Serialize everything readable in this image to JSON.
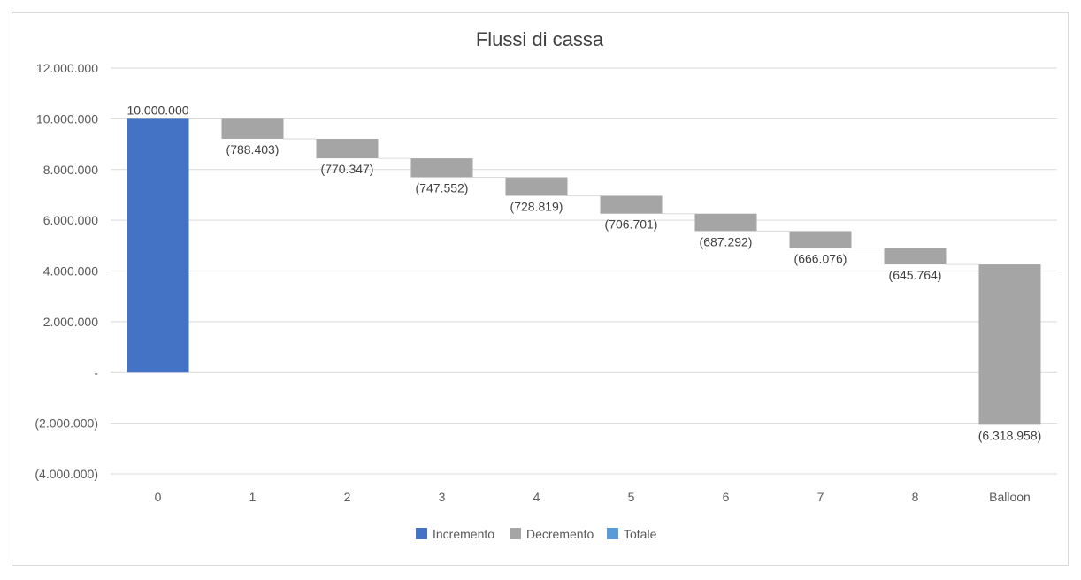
{
  "chart_data": {
    "type": "waterfall",
    "title": "Flussi di cassa",
    "categories": [
      "0",
      "1",
      "2",
      "3",
      "4",
      "5",
      "6",
      "7",
      "8",
      "Balloon"
    ],
    "values": [
      10000000,
      -788403,
      -770347,
      -747552,
      -728819,
      -706701,
      -687292,
      -666076,
      -645764,
      -6318958
    ],
    "data_labels": [
      "10.000.000",
      "(788.403)",
      "(770.347)",
      "(747.552)",
      "(728.819)",
      "(706.701)",
      "(687.292)",
      "(666.076)",
      "(645.764)",
      "(6.318.958)"
    ],
    "ylim": [
      -4000000,
      12000000
    ],
    "y_ticks": [
      12000000,
      10000000,
      8000000,
      6000000,
      4000000,
      2000000,
      0,
      -2000000,
      -4000000
    ],
    "y_tick_labels": [
      "12.000.000",
      "10.000.000",
      "8.000.000",
      "6.000.000",
      "4.000.000",
      "2.000.000",
      "-",
      "(2.000.000)",
      "(4.000.000)"
    ],
    "grid": true,
    "legend_position": "bottom",
    "legend": [
      {
        "name": "Incremento",
        "color": "#4472c4"
      },
      {
        "name": "Decremento",
        "color": "#a5a5a5"
      },
      {
        "name": "Totale",
        "color": "#5b9bd5"
      }
    ]
  }
}
